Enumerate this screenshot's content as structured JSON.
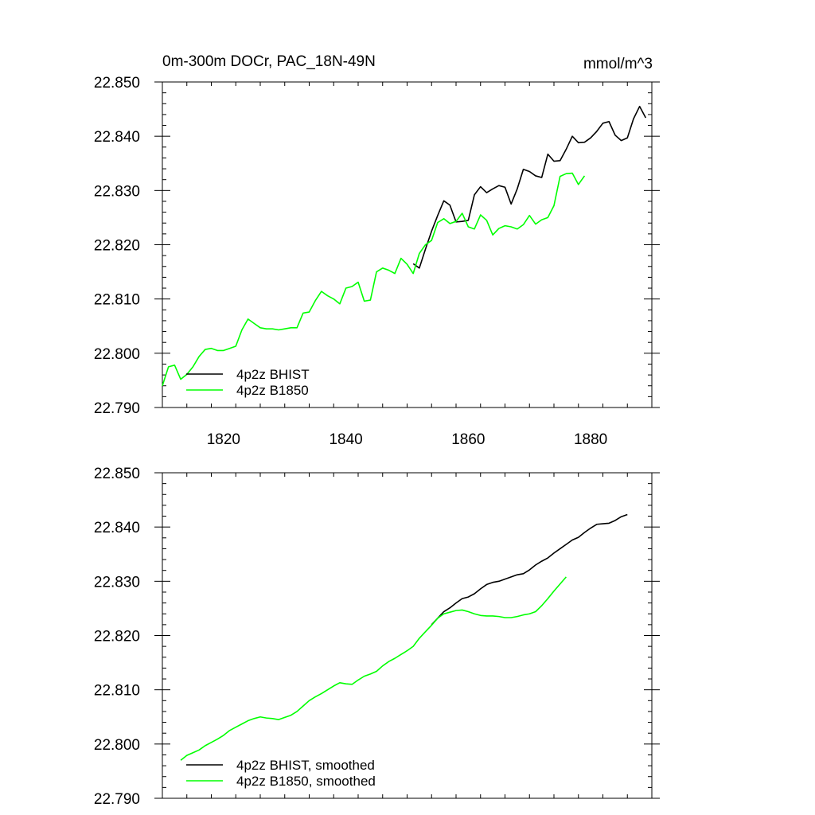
{
  "figure": {
    "title_left": "0m-300m DOCr, PAC_18N-49N",
    "title_right": "mmol/m^3"
  },
  "chart_data": [
    {
      "type": "line",
      "title": "0m-300m DOCr, PAC_18N-49N",
      "units": "mmol/m^3",
      "xlim": [
        1810,
        1890
      ],
      "ylim": [
        22.79,
        22.85
      ],
      "x_ticks": [
        1820,
        1840,
        1860,
        1880
      ],
      "x_tick_labels": [
        "1820",
        "1840",
        "1860",
        "1880"
      ],
      "y_ticks": [
        22.79,
        22.8,
        22.81,
        22.82,
        22.83,
        22.84,
        22.85
      ],
      "y_tick_labels": [
        "22.790",
        "22.800",
        "22.810",
        "22.820",
        "22.830",
        "22.840",
        "22.850"
      ],
      "legend_position": "bottom-left",
      "grid": false,
      "series": [
        {
          "name": "4p2z BHIST",
          "color": "#000000",
          "x": [
            1851,
            1852,
            1853,
            1854,
            1855,
            1856,
            1857,
            1858,
            1859,
            1860,
            1861,
            1862,
            1863,
            1864,
            1865,
            1866,
            1867,
            1868,
            1869,
            1870,
            1871,
            1872,
            1873,
            1874,
            1875,
            1876,
            1877,
            1878,
            1879,
            1880,
            1881,
            1882,
            1883,
            1884,
            1885,
            1886,
            1887,
            1888,
            1889
          ],
          "y": [
            22.8165,
            22.8157,
            22.8192,
            22.8225,
            22.8254,
            22.8281,
            22.8273,
            22.8242,
            22.8243,
            22.8245,
            22.8292,
            22.8307,
            22.8296,
            22.8303,
            22.8309,
            22.8306,
            22.8275,
            22.8303,
            22.8339,
            22.8335,
            22.8327,
            22.8324,
            22.8367,
            22.8354,
            22.8355,
            22.8376,
            22.84,
            22.8388,
            22.8389,
            22.8397,
            22.8409,
            22.8424,
            22.8427,
            22.8402,
            22.8392,
            22.8397,
            22.8432,
            22.8455,
            22.8434
          ]
        },
        {
          "name": "4p2z B1850",
          "color": "#00ff00",
          "x": [
            1810,
            1811,
            1812,
            1813,
            1814,
            1815,
            1816,
            1817,
            1818,
            1819,
            1820,
            1821,
            1822,
            1823,
            1824,
            1825,
            1826,
            1827,
            1828,
            1829,
            1830,
            1831,
            1832,
            1833,
            1834,
            1835,
            1836,
            1837,
            1838,
            1839,
            1840,
            1841,
            1842,
            1843,
            1844,
            1845,
            1846,
            1847,
            1848,
            1849,
            1850,
            1851,
            1852,
            1853,
            1854,
            1855,
            1856,
            1857,
            1858,
            1859,
            1860,
            1861,
            1862,
            1863,
            1864,
            1865,
            1866,
            1867,
            1868,
            1869,
            1870,
            1871,
            1872,
            1873,
            1874,
            1875,
            1876,
            1877,
            1878,
            1879
          ],
          "y": [
            22.794,
            22.7975,
            22.7978,
            22.7952,
            22.7961,
            22.7975,
            22.7994,
            22.8007,
            22.8009,
            22.8005,
            22.8005,
            22.8009,
            22.8013,
            22.8043,
            22.8063,
            22.8055,
            22.8047,
            22.8045,
            22.8045,
            22.8043,
            22.8045,
            22.8047,
            22.8047,
            22.8074,
            22.8076,
            22.8097,
            22.8114,
            22.8106,
            22.81,
            22.8091,
            22.812,
            22.8123,
            22.8131,
            22.8096,
            22.8098,
            22.815,
            22.8157,
            22.8153,
            22.8147,
            22.8175,
            22.8164,
            22.8147,
            22.8184,
            22.82,
            22.8208,
            22.8241,
            22.8248,
            22.8239,
            22.8243,
            22.8258,
            22.8233,
            22.8229,
            22.8255,
            22.8245,
            22.8218,
            22.823,
            22.8235,
            22.8233,
            22.8229,
            22.8237,
            22.8254,
            22.8238,
            22.8246,
            22.825,
            22.8272,
            22.8326,
            22.8331,
            22.8332,
            22.8311,
            22.8327
          ]
        }
      ]
    },
    {
      "type": "line",
      "xlim": [
        1810,
        1890
      ],
      "ylim": [
        22.79,
        22.85
      ],
      "x_ticks": [
        1820,
        1840,
        1860,
        1880
      ],
      "y_ticks": [
        22.79,
        22.8,
        22.81,
        22.82,
        22.83,
        22.84,
        22.85
      ],
      "y_tick_labels": [
        "22.790",
        "22.800",
        "22.810",
        "22.820",
        "22.830",
        "22.840",
        "22.850"
      ],
      "legend_position": "bottom-left",
      "grid": false,
      "series": [
        {
          "name": "4p2z BHIST, smoothed",
          "color": "#000000",
          "x": [
            1854,
            1855,
            1856,
            1857,
            1858,
            1859,
            1860,
            1861,
            1862,
            1863,
            1864,
            1865,
            1866,
            1867,
            1868,
            1869,
            1870,
            1871,
            1872,
            1873,
            1874,
            1875,
            1876,
            1877,
            1878,
            1879,
            1880,
            1881,
            1882,
            1883,
            1884,
            1885,
            1886
          ],
          "y": [
            22.822,
            22.8232,
            22.8244,
            22.8251,
            22.826,
            22.8268,
            22.8271,
            22.8277,
            22.8286,
            22.8294,
            22.8298,
            22.83,
            22.8304,
            22.8308,
            22.8312,
            22.8314,
            22.8321,
            22.833,
            22.8337,
            22.8343,
            22.8352,
            22.836,
            22.8368,
            22.8376,
            22.8381,
            22.839,
            22.8398,
            22.8405,
            22.8406,
            22.8407,
            22.8412,
            22.8419,
            22.8423
          ]
        },
        {
          "name": "4p2z B1850, smoothed",
          "color": "#00ff00",
          "x": [
            1813,
            1814,
            1815,
            1816,
            1817,
            1818,
            1819,
            1820,
            1821,
            1822,
            1823,
            1824,
            1825,
            1826,
            1827,
            1828,
            1829,
            1830,
            1831,
            1832,
            1833,
            1834,
            1835,
            1836,
            1837,
            1838,
            1839,
            1840,
            1841,
            1842,
            1843,
            1844,
            1845,
            1846,
            1847,
            1848,
            1849,
            1850,
            1851,
            1852,
            1853,
            1854,
            1855,
            1856,
            1857,
            1858,
            1859,
            1860,
            1861,
            1862,
            1863,
            1864,
            1865,
            1866,
            1867,
            1868,
            1869,
            1870,
            1871,
            1872,
            1873,
            1874,
            1875,
            1876
          ],
          "y": [
            22.797,
            22.7979,
            22.7984,
            22.7989,
            22.7997,
            22.8003,
            22.8009,
            22.8016,
            22.8025,
            22.8031,
            22.8037,
            22.8043,
            22.8047,
            22.805,
            22.8048,
            22.8047,
            22.8045,
            22.8049,
            22.8053,
            22.806,
            22.807,
            22.808,
            22.8087,
            22.8093,
            22.81,
            22.8107,
            22.8113,
            22.8111,
            22.811,
            22.8118,
            22.8125,
            22.8129,
            22.8134,
            22.8144,
            22.8152,
            22.8158,
            22.8165,
            22.8172,
            22.818,
            22.8195,
            22.8207,
            22.8219,
            22.8232,
            22.824,
            22.8243,
            22.8246,
            22.8247,
            22.8244,
            22.824,
            22.8237,
            22.8236,
            22.8236,
            22.8235,
            22.8233,
            22.8233,
            22.8235,
            22.8238,
            22.824,
            22.8244,
            22.8255,
            22.8268,
            22.8282,
            22.8295,
            22.8308
          ]
        }
      ]
    }
  ]
}
